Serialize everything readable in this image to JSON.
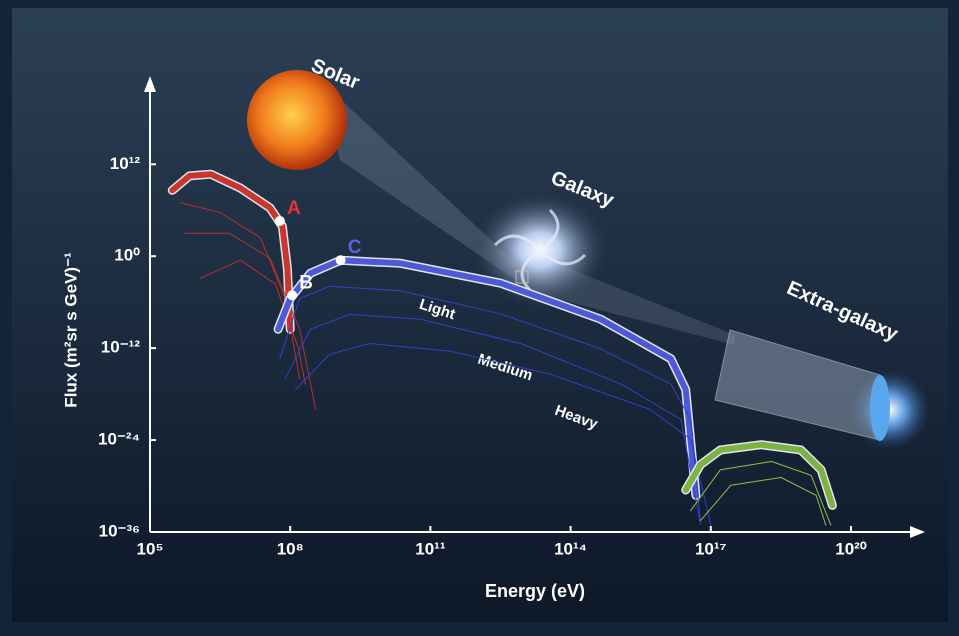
{
  "chart_data": {
    "type": "line",
    "x_label": "Energy (eV)",
    "y_label": "Flux (m²sr s GeV)⁻¹",
    "log_x": true,
    "log_y": true,
    "xlim": [
      100000.0,
      3e+21
    ],
    "ylim": [
      1e-36,
      1e+23
    ],
    "xticks": [
      {
        "value": 100000.0,
        "label": "10⁵"
      },
      {
        "value": 100000000.0,
        "label": "10⁸"
      },
      {
        "value": 100000000000.0,
        "label": "10¹¹"
      },
      {
        "value": 100000000000000.0,
        "label": "10¹⁴"
      },
      {
        "value": 1e+17,
        "label": "10¹⁷"
      },
      {
        "value": 1e+20,
        "label": "10²⁰"
      }
    ],
    "yticks": [
      {
        "value": 1e-36,
        "label": "10⁻³⁶"
      },
      {
        "value": 1e-24,
        "label": "10⁻²⁴"
      },
      {
        "value": 1e-12,
        "label": "10⁻¹²"
      },
      {
        "value": 1,
        "label": "10⁰"
      },
      {
        "value": 1000000000000.0,
        "label": "10¹²"
      }
    ],
    "series": [
      {
        "name": "Solar",
        "color": "#c8362c",
        "line_width": 6,
        "x": [
          300000.0,
          700000.0,
          2000000.0,
          8500000.0,
          37000000.0,
          68000000.0,
          87000000.0,
          100000000.0
        ],
        "values": [
          400000000.0,
          30000000000.0,
          50000000000.0,
          800000000.0,
          2000000.0,
          8000.0,
          0.025,
          3e-10
        ]
      },
      {
        "color": "#b83030",
        "line_width": 1,
        "x": [
          440000.0,
          3200000.0,
          23000000.0,
          78000000.0,
          160000000.0
        ],
        "values": [
          10000000.0,
          500000.0,
          250.0,
          3e-06,
          1e-16
        ]
      },
      {
        "color": "#b83030",
        "line_width": 1,
        "x": [
          560000.0,
          5000000.0,
          37000000.0,
          160000000.0,
          350000000.0
        ],
        "values": [
          1000.0,
          1000.0,
          0.55,
          3e-10,
          1e-20
        ]
      },
      {
        "color": "#b83030",
        "line_width": 1,
        "x": [
          1200000.0,
          8500000.0,
          48000000.0,
          150000000.0,
          210000000.0
        ],
        "values": [
          0.0013,
          0.3,
          0.00025,
          1e-12,
          2e-17
        ]
      },
      {
        "name": "Galaxy",
        "color": "#4c5ad6",
        "line_width": 6,
        "x": [
          55000000.0,
          100000000.0,
          270000000.0,
          1200000000.0,
          23000000000.0,
          3200000000000.0,
          440000000000000.0,
          1.4e+16,
          2.9e+16,
          4.8e+16
        ],
        "values": [
          3e-10,
          3e-06,
          0.006,
          0.3,
          0.12,
          0.0003,
          6e-09,
          4e-14,
          4e-18,
          6e-32
        ]
      },
      {
        "name": "Light",
        "color": "#3142c8",
        "line_width": 1,
        "x": [
          60000000.0,
          160000000.0,
          700000000.0,
          23000000000.0,
          3200000000000.0,
          440000000000000.0,
          1.4e+16,
          3.7e+16,
          6e+16
        ],
        "values": [
          4e-14,
          3e-06,
          0.00012,
          3e-05,
          3e-08,
          8e-13,
          2e-17,
          5e-22,
          3e-35
        ]
      },
      {
        "name": "Medium",
        "color": "#3142c8",
        "line_width": 1,
        "x": [
          78000000.0,
          270000000.0,
          1900000000.0,
          60000000000.0,
          8500000000000.0,
          1200000000000000.0,
          2.3e+16,
          6e+16
        ],
        "values": [
          1e-16,
          3e-10,
          2.5e-08,
          6e-09,
          4e-12,
          2e-17,
          5e-22,
          1e-35
        ]
      },
      {
        "name": "Heavy",
        "color": "#3142c8",
        "line_width": 1,
        "x": [
          130000000.0,
          700000000.0,
          5000000000.0,
          270000000000.0,
          37000000000000.0,
          5000000000000000.0,
          3.7e+16,
          1e+17
        ],
        "values": [
          4e-18,
          1.6e-13,
          4e-12,
          4e-13,
          4e-16,
          1e-20,
          1.3e-24,
          8e-36
        ]
      },
      {
        "name": "Extra-galaxy",
        "color": "#7cb342",
        "line_width": 6,
        "x": [
          2.9e+16,
          6e+16,
          1.6e+17,
          1.2e+18,
          8.5e+18,
          2.3e+19,
          4e+19
        ],
        "values": [
          3e-31,
          6e-28,
          5e-26,
          2.5e-25,
          5e-26,
          1.3e-28,
          3e-33
        ]
      },
      {
        "color": "#8bc34a",
        "line_width": 1,
        "x": [
          3.7e+16,
          1.6e+17,
          2e+18,
          1.4e+19,
          3.7e+19
        ],
        "values": [
          6e-34,
          1.3e-28,
          1.6e-27,
          2.5e-29,
          8e-36
        ]
      },
      {
        "color": "#8bc34a",
        "line_width": 1,
        "x": [
          6e+16,
          2.7e+17,
          3.2e+18,
          1.8e+19,
          2.9e+19
        ],
        "values": [
          3e-35,
          1.3e-30,
          1.3e-29,
          6e-32,
          8e-36
        ]
      }
    ],
    "points": [
      {
        "label": "A",
        "color": "#e0343a",
        "x": 60000000.0,
        "y": 40000.0
      },
      {
        "label": "B",
        "color": "#ffffff",
        "x": 110000000.0,
        "y": 8e-06
      },
      {
        "label": "C",
        "color": "#5566e0",
        "x": 1200000000.0,
        "y": 0.3
      }
    ]
  }
}
